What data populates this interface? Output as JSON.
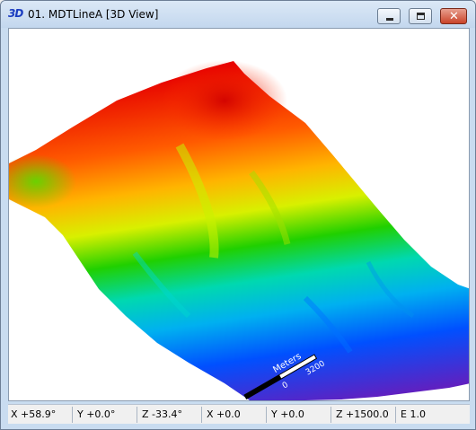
{
  "window": {
    "icon_text": "3D",
    "title": "01. MDTLineA [3D View]"
  },
  "scale_bar": {
    "unit": "Meters",
    "tick_start": "0",
    "tick_end": "3200"
  },
  "status": {
    "x_rot": "X +58.9°",
    "y_rot": "Y +0.0°",
    "z_rot": "Z -33.4°",
    "x_pos": "X +0.0",
    "y_pos": "Y +0.0",
    "z_pos": "Z +1500.0",
    "exag": "E 1.0"
  },
  "colors": {
    "high": "#e60000",
    "mid_high": "#ff8c00",
    "mid": "#f0e000",
    "mid_low": "#20d000",
    "low": "#00c8e8",
    "lower": "#0050ff",
    "lowest": "#6020c0"
  }
}
